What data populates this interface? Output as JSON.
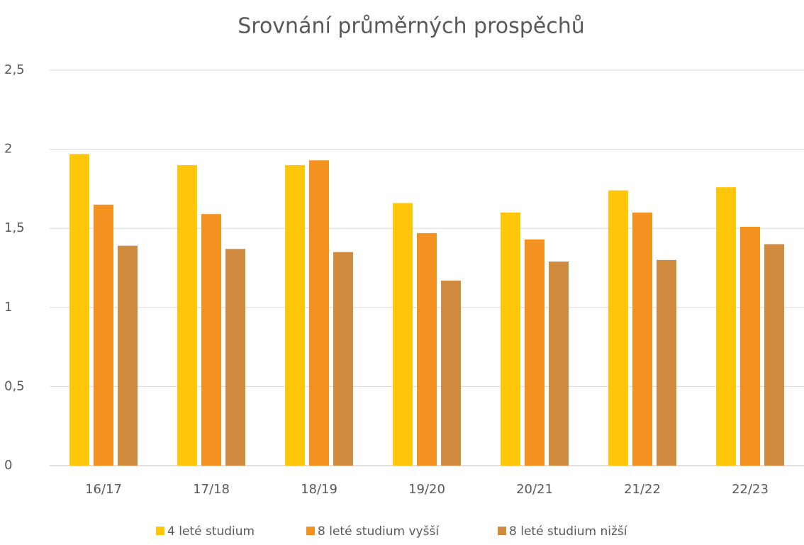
{
  "chart_data": {
    "type": "bar",
    "title": "Srovnání  průměrných prospěchů",
    "categories": [
      "16/17",
      "17/18",
      "18/19",
      "19/20",
      "20/21",
      "21/22",
      "22/23"
    ],
    "series": [
      {
        "name": "4 leté studium",
        "color": "#ffc60a",
        "values": [
          1.97,
          1.9,
          1.9,
          1.66,
          1.6,
          1.74,
          1.76
        ]
      },
      {
        "name": "8 leté studium vyšší",
        "color": "#f39221",
        "values": [
          1.65,
          1.59,
          1.93,
          1.47,
          1.43,
          1.6,
          1.51
        ]
      },
      {
        "name": "8 leté studium nižší",
        "color": "#d08b3f",
        "values": [
          1.39,
          1.37,
          1.35,
          1.17,
          1.29,
          1.3,
          1.4
        ]
      }
    ],
    "ylim": [
      0,
      2.5
    ],
    "yticks": [
      0,
      {
        "value": 0.5,
        "label": "0,5"
      },
      1,
      {
        "value": 1.5,
        "label": "1,5"
      },
      2,
      {
        "value": 2.5,
        "label": "2,5"
      }
    ],
    "grid": true,
    "legend": "bottom"
  }
}
